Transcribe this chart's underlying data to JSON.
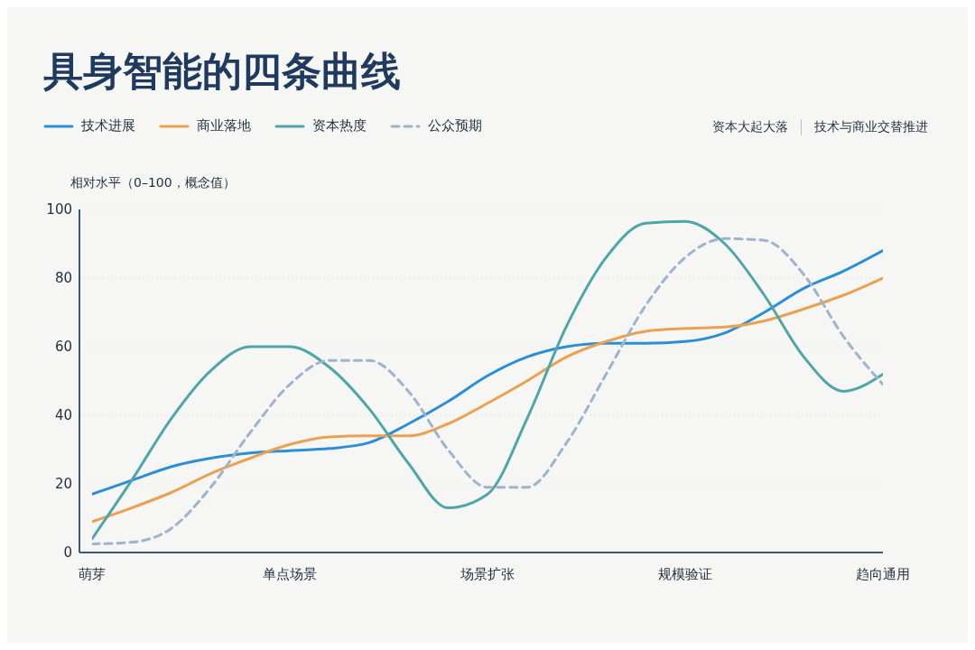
{
  "chart_data": {
    "type": "line",
    "title": "具身智能的四条曲线",
    "ylabel": "相对水平（0–100，概念值）",
    "annotations": [
      "资本大起大落",
      "技术与商业交替推进"
    ],
    "categories": [
      "萌芽",
      null,
      null,
      null,
      null,
      "单点场景",
      null,
      null,
      null,
      null,
      "场景扩张",
      null,
      null,
      null,
      null,
      "规模验证",
      null,
      null,
      null,
      null,
      "趋向通用"
    ],
    "ylim": [
      0,
      100
    ],
    "yticks": [
      0,
      20,
      40,
      60,
      80,
      100
    ],
    "grid": "y",
    "legend": "top left",
    "marker": "none",
    "series": [
      {
        "name": "技术进展",
        "color": "#2a8fd6",
        "line_style": "solid",
        "values": [
          17,
          21,
          25,
          27.5,
          29,
          29.7,
          30.3,
          32,
          37.5,
          44,
          51.5,
          57,
          60,
          61,
          61,
          61.5,
          64,
          70,
          77,
          82,
          88
        ]
      },
      {
        "name": "商业落地",
        "color": "#eba14f",
        "line_style": "solid",
        "values": [
          9,
          13,
          17.5,
          23,
          27.5,
          31.5,
          33.7,
          34,
          34,
          37.5,
          43.5,
          50,
          57,
          61.5,
          64.5,
          65.3,
          65.7,
          67.5,
          71,
          75,
          80
        ]
      },
      {
        "name": "资本热度",
        "color": "#4ea6a8",
        "line_style": "solid",
        "values": [
          4,
          21,
          39,
          53,
          60,
          60,
          54,
          42,
          26,
          13,
          17,
          39,
          66,
          86,
          96,
          96.5,
          90,
          75,
          57,
          47,
          52
        ]
      },
      {
        "name": "公众预期",
        "color": "#9fb4cc",
        "line_style": "dashed",
        "values": [
          2.5,
          3,
          7,
          19,
          35,
          49,
          56,
          56,
          47,
          30,
          19,
          19,
          32,
          52,
          72,
          86,
          91.5,
          91,
          81,
          63,
          49
        ]
      }
    ]
  }
}
